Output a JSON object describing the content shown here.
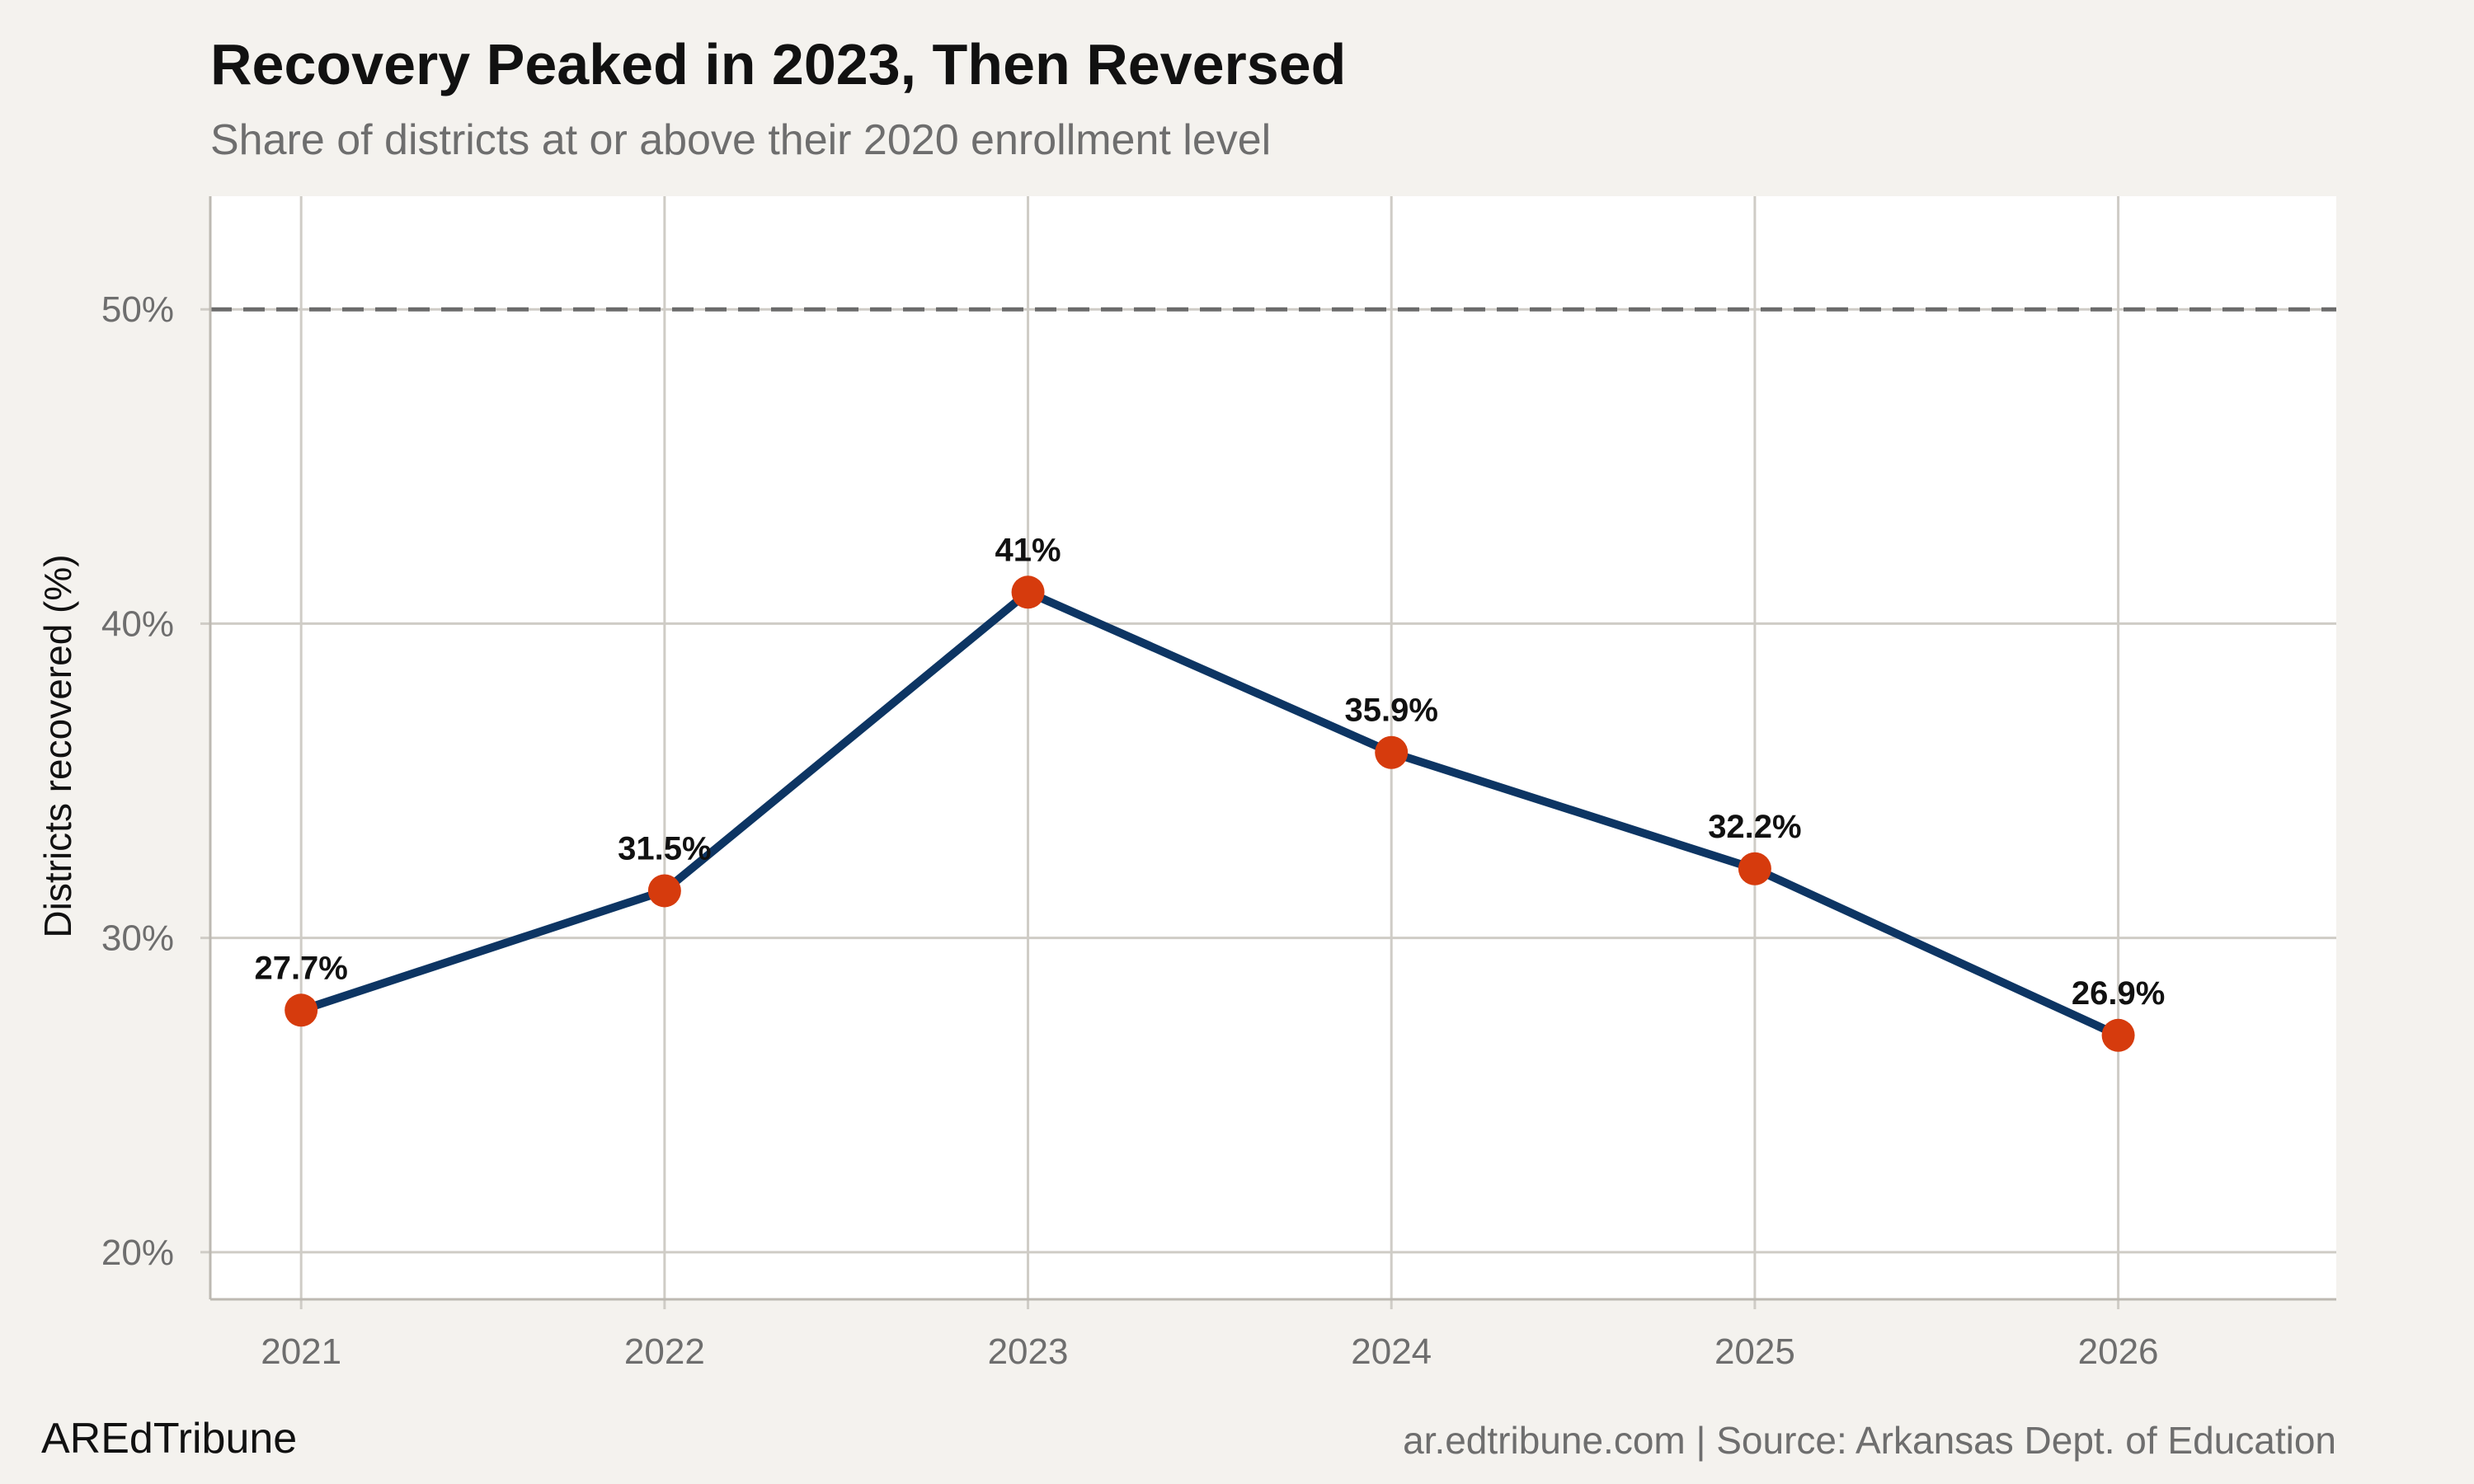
{
  "title": "Recovery Peaked in 2023, Then Reversed",
  "subtitle": "Share of districts at or above their 2020 enrollment level",
  "brand": "AREdTribune",
  "source": "ar.edtribune.com | Source: Arkansas Dept. of Education",
  "colors": {
    "background": "#f4f2ee",
    "panel": "#ffffff",
    "line": "#0d3563",
    "point": "#d63b0d",
    "grid": "#cfccc6",
    "reference_line": "#6b6b6b"
  },
  "chart_data": {
    "type": "line",
    "x": [
      2021,
      2022,
      2023,
      2024,
      2025,
      2026
    ],
    "x_tick_labels": [
      "2021",
      "2022",
      "2023",
      "2024",
      "2025",
      "2026"
    ],
    "series": [
      {
        "values": [
          27.7,
          31.5,
          41.0,
          35.9,
          32.2,
          26.9
        ],
        "data_labels": [
          "27.7%",
          "31.5%",
          "41%",
          "35.9%",
          "32.2%",
          "26.9%"
        ]
      }
    ],
    "reference_line": {
      "y": 50,
      "style": "dashed"
    },
    "ylabel": "Districts recovered (%)",
    "xlabel": "",
    "ylim": [
      18.5,
      53.6
    ],
    "xlim": [
      2020.75,
      2026.6
    ],
    "y_ticks": [
      20,
      30,
      40,
      50
    ],
    "y_tick_labels": [
      "20%",
      "30%",
      "40%",
      "50%"
    ],
    "grid": true
  }
}
